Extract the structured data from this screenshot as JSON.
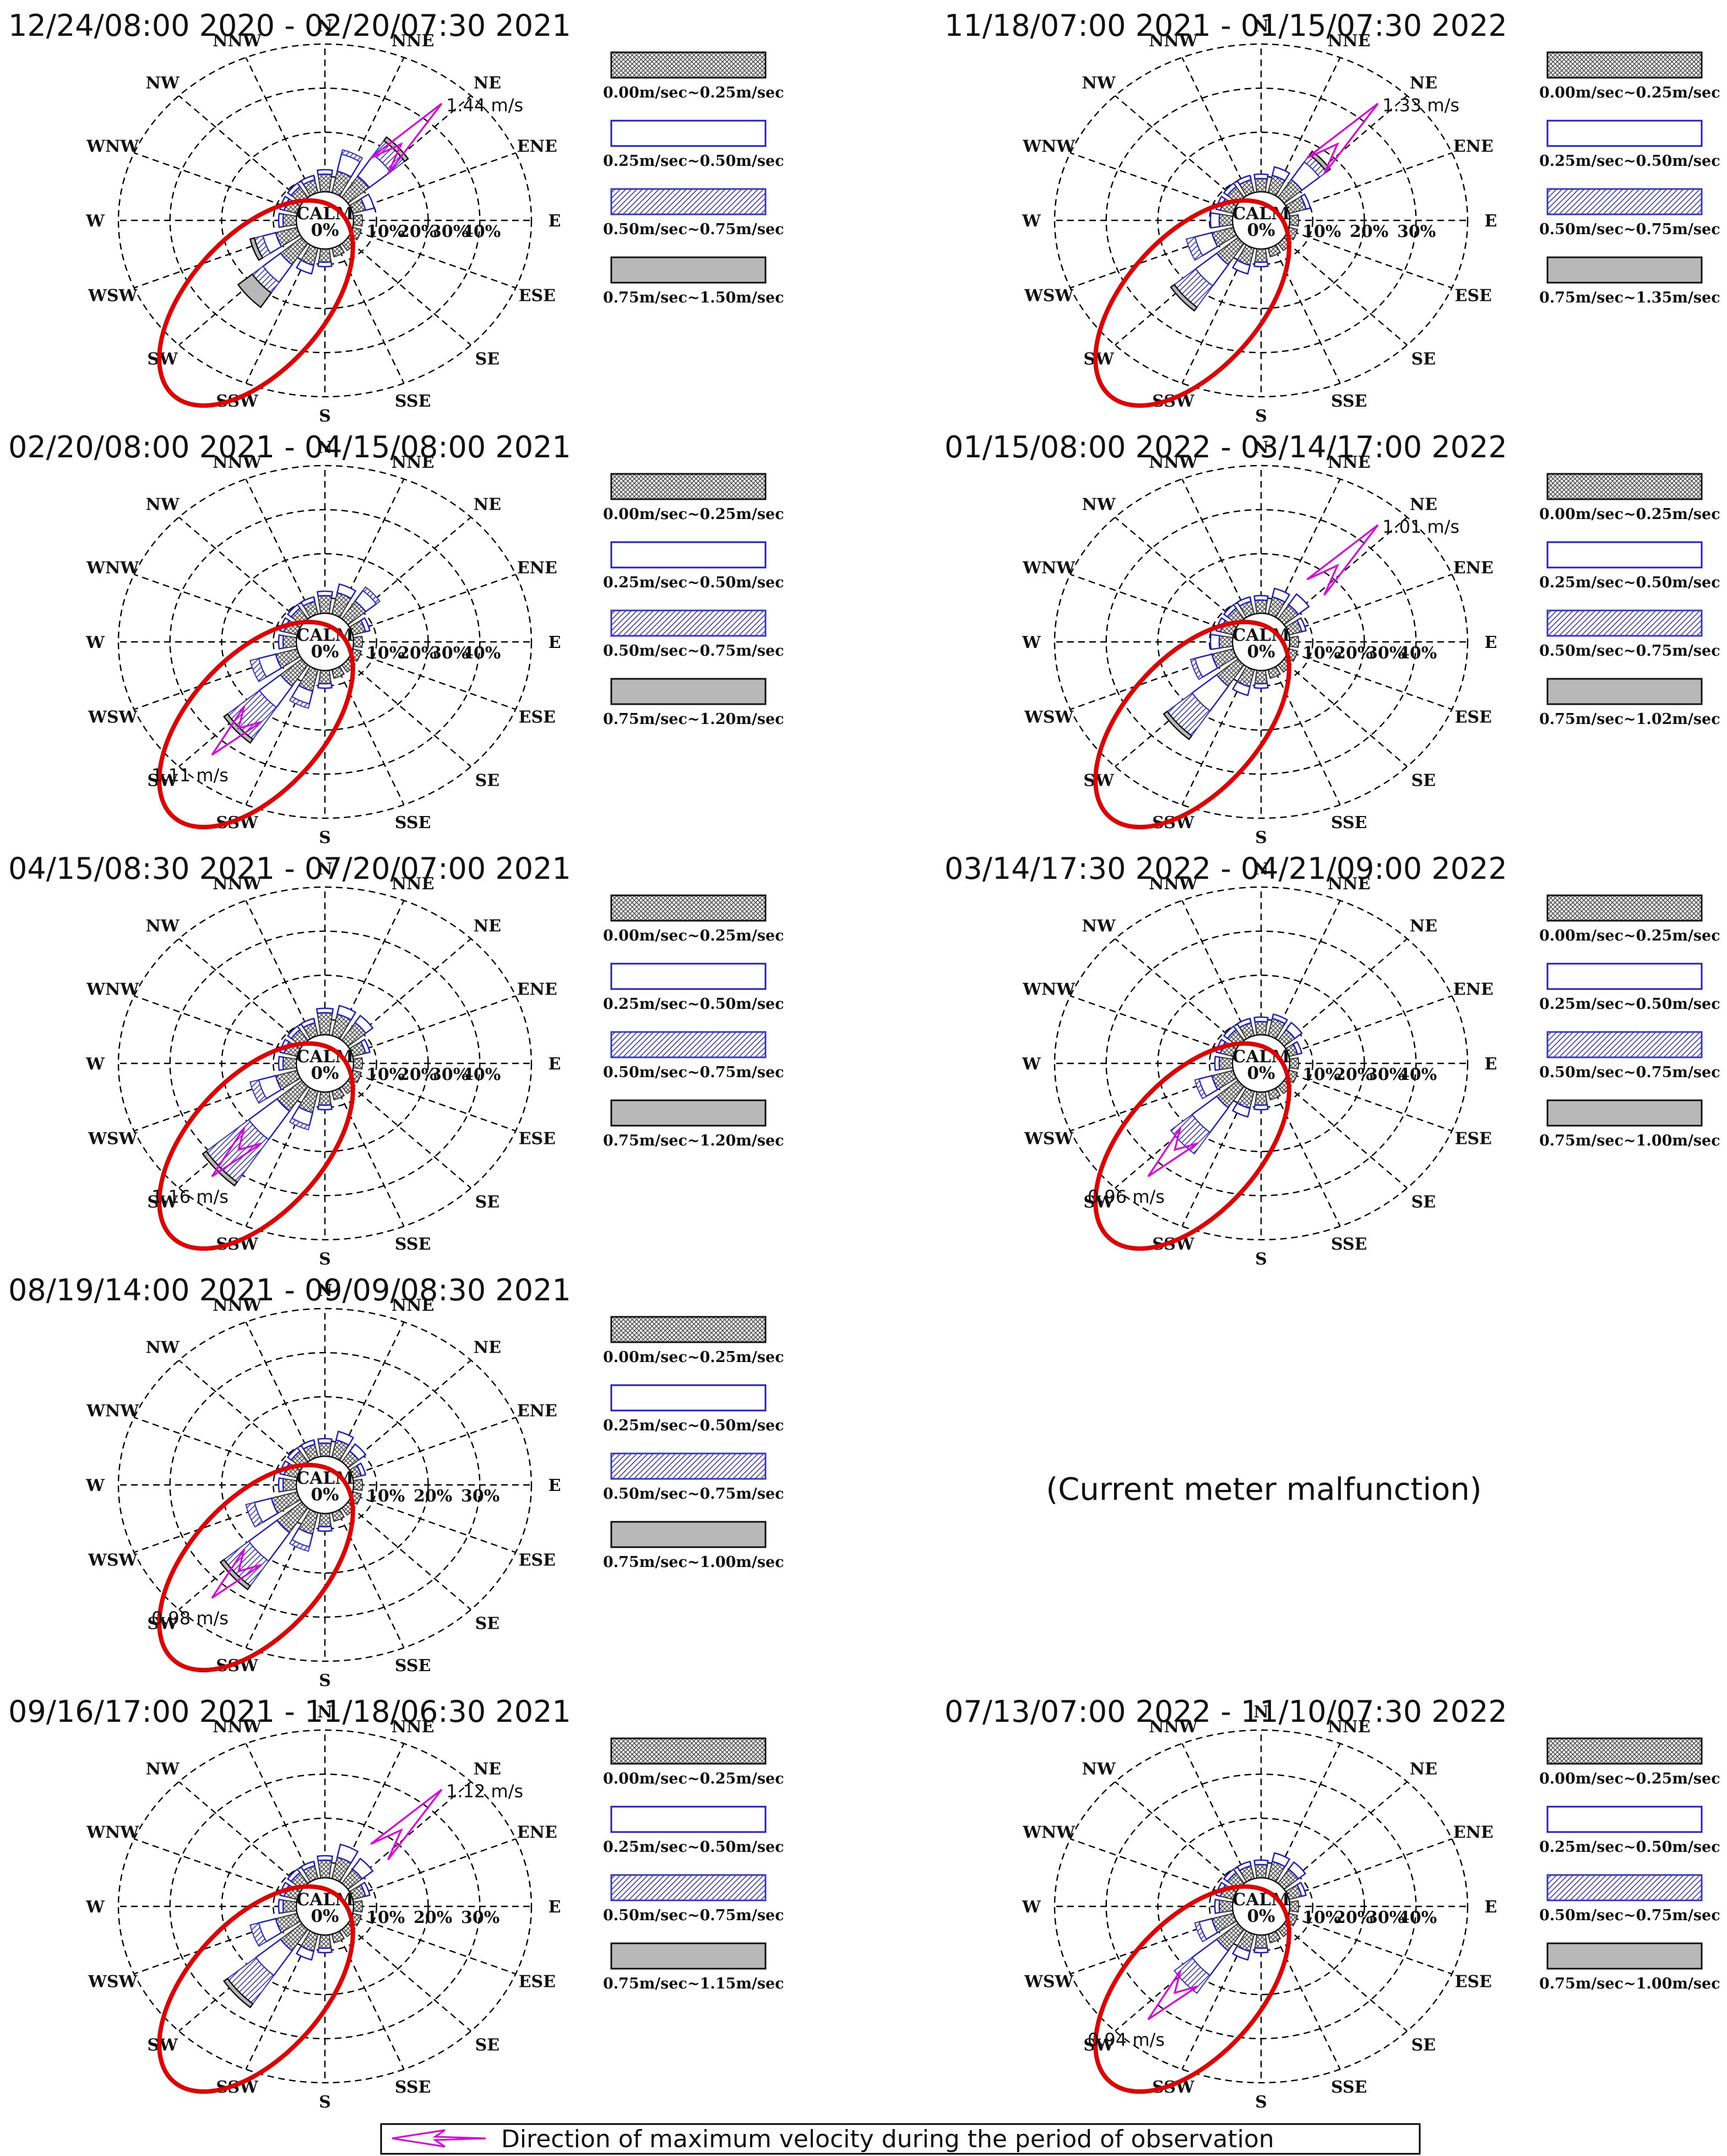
{
  "figure": {
    "note": "(Current meter malfunction)",
    "footer_legend": "Direction of maximum velocity during the period of observation"
  },
  "colors": {
    "bin1": "#555555",
    "bin2": "#1e1ec8",
    "bin3": "#3535c8",
    "bin4": "#b8b8b8",
    "ellipse": "#e00000",
    "arrow": "#e000e0",
    "grid": "#000000"
  },
  "chart_data": [
    {
      "type": "windrose",
      "title": "12/24/08:00 2020 - 02/20/07:30 2021",
      "directions": [
        "N",
        "NNE",
        "NE",
        "ENE",
        "E",
        "ESE",
        "SE",
        "SSE",
        "S",
        "SSW",
        "SW",
        "WSW",
        "W",
        "WNW",
        "NW",
        "NNW"
      ],
      "radial_ticks": [
        "10%",
        "20%",
        "30%",
        "40%"
      ],
      "radial_range": [
        0,
        45
      ],
      "calm_label": "CALM",
      "calm_value": "0%",
      "legend": [
        "0.00m/sec~0.25m/sec",
        "0.25m/sec~0.50m/sec",
        "0.50m/sec~0.75m/sec",
        "0.75m/sec~1.50m/sec"
      ],
      "series": [
        {
          "name": "0.00m/sec~0.25m/sec",
          "values": [
            4,
            5,
            6,
            3,
            2,
            2,
            2,
            2,
            3,
            4,
            6,
            5,
            3,
            3,
            3,
            3
          ]
        },
        {
          "name": "0.25m/sec~0.50m/sec",
          "values": [
            1,
            4,
            6,
            2,
            0,
            0,
            0,
            0,
            1,
            2,
            5,
            3,
            1,
            1,
            1,
            1
          ]
        },
        {
          "name": "0.50m/sec~0.75m/sec",
          "values": [
            0,
            1,
            4,
            0,
            0,
            0,
            0,
            0,
            0,
            0,
            3,
            2,
            0,
            0,
            0,
            0
          ]
        },
        {
          "name": "0.75m/sec~1.50m/sec",
          "values": [
            0,
            0,
            1,
            0,
            0,
            0,
            0,
            0,
            0,
            0,
            4,
            1,
            0,
            0,
            0,
            0
          ]
        }
      ],
      "max_velocity": {
        "label": "1.44 m/s",
        "direction": "NE",
        "value": 1.44
      }
    },
    {
      "type": "windrose",
      "title": "11/18/07:00 2021 - 01/15/07:30 2022",
      "directions": [
        "N",
        "NNE",
        "NE",
        "ENE",
        "E",
        "ESE",
        "SE",
        "SSE",
        "S",
        "SSW",
        "SW",
        "WSW",
        "W",
        "WNW",
        "NW",
        "NNW"
      ],
      "radial_ticks": [
        "10%",
        "20%",
        "30%"
      ],
      "radial_range": [
        0,
        35
      ],
      "calm_label": "CALM",
      "calm_value": "0%",
      "legend": [
        "0.00m/sec~0.25m/sec",
        "0.25m/sec~0.50m/sec",
        "0.50m/sec~0.75m/sec",
        "0.75m/sec~1.35m/sec"
      ],
      "series": [
        {
          "name": "0.00m/sec~0.25m/sec",
          "values": [
            3,
            4,
            5,
            4,
            2,
            2,
            2,
            2,
            3,
            4,
            6,
            5,
            3,
            3,
            3,
            3
          ]
        },
        {
          "name": "0.25m/sec~0.50m/sec",
          "values": [
            1,
            2,
            5,
            1,
            0,
            0,
            0,
            0,
            1,
            2,
            6,
            4,
            2,
            1,
            1,
            1
          ]
        },
        {
          "name": "0.50m/sec~0.75m/sec",
          "values": [
            0,
            0,
            2,
            0,
            0,
            0,
            0,
            0,
            0,
            0,
            6,
            2,
            0,
            0,
            0,
            0
          ]
        },
        {
          "name": "0.75m/sec~1.35m/sec",
          "values": [
            0,
            0,
            1,
            0,
            0,
            0,
            0,
            0,
            0,
            0,
            1,
            0,
            0,
            0,
            0,
            0
          ]
        }
      ],
      "max_velocity": {
        "label": "1.33 m/s",
        "direction": "NE",
        "value": 1.33
      }
    },
    {
      "type": "windrose",
      "title": "02/20/08:00 2021 - 04/15/08:00 2021",
      "directions": [
        "N",
        "NNE",
        "NE",
        "ENE",
        "E",
        "ESE",
        "SE",
        "SSE",
        "S",
        "SSW",
        "SW",
        "WSW",
        "W",
        "WNW",
        "NW",
        "NNW"
      ],
      "radial_ticks": [
        "10%",
        "20%",
        "30%",
        "40%"
      ],
      "radial_range": [
        0,
        45
      ],
      "calm_label": "CALM",
      "calm_value": "0%",
      "legend": [
        "0.00m/sec~0.25m/sec",
        "0.25m/sec~0.50m/sec",
        "0.50m/sec~0.75m/sec",
        "0.75m/sec~1.20m/sec"
      ],
      "series": [
        {
          "name": "0.00m/sec~0.25m/sec",
          "values": [
            4,
            5,
            5,
            3,
            2,
            2,
            2,
            2,
            3,
            5,
            6,
            5,
            3,
            3,
            3,
            3
          ]
        },
        {
          "name": "0.25m/sec~0.50m/sec",
          "values": [
            1,
            2,
            3,
            1,
            0,
            0,
            0,
            0,
            1,
            3,
            6,
            4,
            1,
            1,
            1,
            1
          ]
        },
        {
          "name": "0.50m/sec~0.75m/sec",
          "values": [
            0,
            0,
            1,
            0,
            0,
            0,
            0,
            0,
            0,
            1,
            9,
            2,
            0,
            0,
            0,
            0
          ]
        },
        {
          "name": "0.75m/sec~1.20m/sec",
          "values": [
            0,
            0,
            0,
            0,
            0,
            0,
            0,
            0,
            0,
            0,
            1,
            0,
            0,
            0,
            0,
            0
          ]
        }
      ],
      "max_velocity": {
        "label": "1.11 m/s",
        "direction": "SW",
        "value": 1.11
      }
    },
    {
      "type": "windrose",
      "title": "01/15/08:00 2022 - 03/14/17:00 2022",
      "directions": [
        "N",
        "NNE",
        "NE",
        "ENE",
        "E",
        "ESE",
        "SE",
        "SSE",
        "S",
        "SSW",
        "SW",
        "WSW",
        "W",
        "WNW",
        "NW",
        "NNW"
      ],
      "radial_ticks": [
        "10%",
        "20%",
        "30%",
        "40%"
      ],
      "radial_range": [
        0,
        45
      ],
      "calm_label": "CALM",
      "calm_value": "0%",
      "legend": [
        "0.00m/sec~0.25m/sec",
        "0.25m/sec~0.50m/sec",
        "0.50m/sec~0.75m/sec",
        "0.75m/sec~1.02m/sec"
      ],
      "series": [
        {
          "name": "0.00m/sec~0.25m/sec",
          "values": [
            3,
            4,
            4,
            3,
            2,
            2,
            2,
            2,
            3,
            4,
            6,
            5,
            3,
            3,
            3,
            3
          ]
        },
        {
          "name": "0.25m/sec~0.50m/sec",
          "values": [
            1,
            2,
            3,
            1,
            0,
            0,
            0,
            0,
            1,
            2,
            7,
            4,
            2,
            1,
            1,
            1
          ]
        },
        {
          "name": "0.50m/sec~0.75m/sec",
          "values": [
            0,
            0,
            0,
            0,
            0,
            0,
            0,
            0,
            0,
            0,
            7,
            1,
            0,
            0,
            0,
            0
          ]
        },
        {
          "name": "0.75m/sec~1.02m/sec",
          "values": [
            0,
            0,
            0,
            0,
            0,
            0,
            0,
            0,
            0,
            0,
            1,
            0,
            0,
            0,
            0,
            0
          ]
        }
      ],
      "max_velocity": {
        "label": "1.01 m/s",
        "direction": "NE",
        "value": 1.01
      }
    },
    {
      "type": "windrose",
      "title": "04/15/08:30 2021 - 07/20/07:00 2021",
      "directions": [
        "N",
        "NNE",
        "NE",
        "ENE",
        "E",
        "ESE",
        "SE",
        "SSE",
        "S",
        "SSW",
        "SW",
        "WSW",
        "W",
        "WNW",
        "NW",
        "NNW"
      ],
      "radial_ticks": [
        "10%",
        "20%",
        "30%",
        "40%"
      ],
      "radial_range": [
        0,
        45
      ],
      "calm_label": "CALM",
      "calm_value": "0%",
      "legend": [
        "0.00m/sec~0.25m/sec",
        "0.25m/sec~0.50m/sec",
        "0.50m/sec~0.75m/sec",
        "0.75m/sec~1.20m/sec"
      ],
      "series": [
        {
          "name": "0.00m/sec~0.25m/sec",
          "values": [
            5,
            5,
            5,
            3,
            2,
            2,
            2,
            2,
            3,
            5,
            7,
            5,
            3,
            3,
            3,
            3
          ]
        },
        {
          "name": "0.25m/sec~0.50m/sec",
          "values": [
            1,
            2,
            2,
            1,
            0,
            0,
            0,
            0,
            1,
            3,
            8,
            4,
            1,
            1,
            1,
            1
          ]
        },
        {
          "name": "0.50m/sec~0.75m/sec",
          "values": [
            0,
            0,
            0,
            0,
            0,
            0,
            0,
            0,
            0,
            1,
            12,
            2,
            0,
            0,
            0,
            0
          ]
        },
        {
          "name": "0.75m/sec~1.20m/sec",
          "values": [
            0,
            0,
            0,
            0,
            0,
            0,
            0,
            0,
            0,
            0,
            1,
            0,
            0,
            0,
            0,
            0
          ]
        }
      ],
      "max_velocity": {
        "label": "1.16 m/s",
        "direction": "SW",
        "value": 1.16
      }
    },
    {
      "type": "windrose",
      "title": "03/14/17:30 2022 - 04/21/09:00 2022",
      "directions": [
        "N",
        "NNE",
        "NE",
        "ENE",
        "E",
        "ESE",
        "SE",
        "SSE",
        "S",
        "SSW",
        "SW",
        "WSW",
        "W",
        "WNW",
        "NW",
        "NNW"
      ],
      "radial_ticks": [
        "10%",
        "20%",
        "30%",
        "40%"
      ],
      "radial_range": [
        0,
        45
      ],
      "calm_label": "CALM",
      "calm_value": "0%",
      "legend": [
        "0.00m/sec~0.25m/sec",
        "0.25m/sec~0.50m/sec",
        "0.50m/sec~0.75m/sec",
        "0.75m/sec~1.00m/sec"
      ],
      "series": [
        {
          "name": "0.00m/sec~0.25m/sec",
          "values": [
            3,
            4,
            3,
            2,
            2,
            2,
            2,
            2,
            3,
            4,
            6,
            5,
            3,
            3,
            3,
            3
          ]
        },
        {
          "name": "0.25m/sec~0.50m/sec",
          "values": [
            1,
            1,
            2,
            1,
            0,
            0,
            0,
            0,
            1,
            2,
            7,
            3,
            1,
            1,
            1,
            1
          ]
        },
        {
          "name": "0.50m/sec~0.75m/sec",
          "values": [
            0,
            0,
            0,
            0,
            0,
            0,
            0,
            0,
            0,
            0,
            6,
            1,
            0,
            0,
            0,
            0
          ]
        },
        {
          "name": "0.75m/sec~1.00m/sec",
          "values": [
            0,
            0,
            0,
            0,
            0,
            0,
            0,
            0,
            0,
            0,
            0,
            0,
            0,
            0,
            0,
            0
          ]
        }
      ],
      "max_velocity": {
        "label": "0.96 m/s",
        "direction": "SW",
        "value": 0.96
      }
    },
    {
      "type": "windrose",
      "title": "08/19/14:00 2021 - 09/09/08:30 2021",
      "directions": [
        "N",
        "NNE",
        "NE",
        "ENE",
        "E",
        "ESE",
        "SE",
        "SSE",
        "S",
        "SSW",
        "SW",
        "WSW",
        "W",
        "WNW",
        "NW",
        "NNW"
      ],
      "radial_ticks": [
        "10%",
        "20%",
        "30%"
      ],
      "radial_range": [
        0,
        35
      ],
      "calm_label": "CALM",
      "calm_value": "0%",
      "legend": [
        "0.00m/sec~0.25m/sec",
        "0.25m/sec~0.50m/sec",
        "0.50m/sec~0.75m/sec",
        "0.75m/sec~1.00m/sec"
      ],
      "series": [
        {
          "name": "0.00m/sec~0.25m/sec",
          "values": [
            3,
            4,
            3,
            2,
            2,
            2,
            2,
            2,
            3,
            5,
            7,
            6,
            3,
            3,
            3,
            3
          ]
        },
        {
          "name": "0.25m/sec~0.50m/sec",
          "values": [
            1,
            2,
            2,
            1,
            0,
            0,
            0,
            0,
            1,
            3,
            8,
            4,
            1,
            1,
            1,
            1
          ]
        },
        {
          "name": "0.50m/sec~0.75m/sec",
          "values": [
            0,
            0,
            0,
            0,
            0,
            0,
            0,
            0,
            0,
            1,
            7,
            2,
            0,
            0,
            0,
            0
          ]
        },
        {
          "name": "0.75m/sec~1.00m/sec",
          "values": [
            0,
            0,
            0,
            0,
            0,
            0,
            0,
            0,
            0,
            0,
            1,
            0,
            0,
            0,
            0,
            0
          ]
        }
      ],
      "max_velocity": {
        "label": "0.98 m/s",
        "direction": "SW",
        "value": 0.98
      }
    },
    {
      "type": "windrose",
      "title": "09/16/17:00 2021 - 11/18/06:30 2021",
      "directions": [
        "N",
        "NNE",
        "NE",
        "ENE",
        "E",
        "ESE",
        "SE",
        "SSE",
        "S",
        "SSW",
        "SW",
        "WSW",
        "W",
        "WNW",
        "NW",
        "NNW"
      ],
      "radial_ticks": [
        "10%",
        "20%",
        "30%"
      ],
      "radial_range": [
        0,
        35
      ],
      "calm_label": "CALM",
      "calm_value": "0%",
      "legend": [
        "0.00m/sec~0.25m/sec",
        "0.25m/sec~0.50m/sec",
        "0.50m/sec~0.75m/sec",
        "0.75m/sec~1.15m/sec"
      ],
      "series": [
        {
          "name": "0.00m/sec~0.25m/sec",
          "values": [
            4,
            5,
            4,
            3,
            2,
            2,
            2,
            2,
            3,
            4,
            6,
            5,
            3,
            3,
            3,
            3
          ]
        },
        {
          "name": "0.25m/sec~0.50m/sec",
          "values": [
            1,
            3,
            3,
            1,
            0,
            0,
            0,
            0,
            1,
            2,
            7,
            4,
            1,
            1,
            1,
            1
          ]
        },
        {
          "name": "0.50m/sec~0.75m/sec",
          "values": [
            0,
            0,
            0,
            0,
            0,
            0,
            0,
            0,
            0,
            0,
            8,
            2,
            0,
            0,
            0,
            0
          ]
        },
        {
          "name": "0.75m/sec~1.15m/sec",
          "values": [
            0,
            0,
            0,
            0,
            0,
            0,
            0,
            0,
            0,
            0,
            1,
            0,
            0,
            0,
            0,
            0
          ]
        }
      ],
      "max_velocity": {
        "label": "1.12 m/s",
        "direction": "NE",
        "value": 1.12
      }
    },
    {
      "type": "windrose",
      "title": "07/13/07:00 2022 - 11/10/07:30 2022",
      "directions": [
        "N",
        "NNE",
        "NE",
        "ENE",
        "E",
        "ESE",
        "SE",
        "SSE",
        "S",
        "SSW",
        "SW",
        "WSW",
        "W",
        "WNW",
        "NW",
        "NNW"
      ],
      "radial_ticks": [
        "10%",
        "20%",
        "30%",
        "40%"
      ],
      "radial_range": [
        0,
        45
      ],
      "calm_label": "CALM",
      "calm_value": "0%",
      "legend": [
        "0.00m/sec~0.25m/sec",
        "0.25m/sec~0.50m/sec",
        "0.50m/sec~0.75m/sec",
        "0.75m/sec~1.00m/sec"
      ],
      "series": [
        {
          "name": "0.00m/sec~0.25m/sec",
          "values": [
            3,
            4,
            4,
            3,
            2,
            2,
            2,
            2,
            3,
            4,
            6,
            5,
            3,
            3,
            3,
            3
          ]
        },
        {
          "name": "0.25m/sec~0.50m/sec",
          "values": [
            1,
            2,
            2,
            1,
            0,
            0,
            0,
            0,
            1,
            2,
            7,
            3,
            1,
            1,
            1,
            1
          ]
        },
        {
          "name": "0.50m/sec~0.75m/sec",
          "values": [
            0,
            0,
            0,
            0,
            0,
            0,
            0,
            0,
            0,
            0,
            5,
            1,
            0,
            0,
            0,
            0
          ]
        },
        {
          "name": "0.75m/sec~1.00m/sec",
          "values": [
            0,
            0,
            0,
            0,
            0,
            0,
            0,
            0,
            0,
            0,
            0,
            0,
            0,
            0,
            0,
            0
          ]
        }
      ],
      "max_velocity": {
        "label": "0.94 m/s",
        "direction": "SW",
        "value": 0.94
      }
    }
  ]
}
